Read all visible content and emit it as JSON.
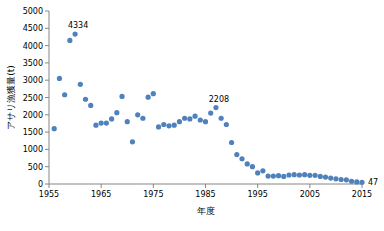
{
  "chart_data": {
    "type": "scatter",
    "x_label": "年度",
    "y_label": "アサリ漁獲量(t)",
    "x": [
      1956,
      1957,
      1958,
      1959,
      1960,
      1961,
      1962,
      1963,
      1964,
      1965,
      1966,
      1967,
      1968,
      1969,
      1970,
      1971,
      1972,
      1973,
      1974,
      1975,
      1976,
      1977,
      1978,
      1979,
      1980,
      1981,
      1982,
      1983,
      1984,
      1985,
      1986,
      1987,
      1988,
      1989,
      1990,
      1991,
      1992,
      1993,
      1994,
      1995,
      1996,
      1997,
      1998,
      1999,
      2000,
      2001,
      2002,
      2003,
      2004,
      2005,
      2006,
      2007,
      2008,
      2009,
      2010,
      2011,
      2012,
      2013,
      2014,
      2015
    ],
    "values": [
      1600,
      3050,
      2580,
      4150,
      4334,
      2880,
      2450,
      2270,
      1700,
      1760,
      1760,
      1880,
      2060,
      2530,
      1800,
      1220,
      2000,
      1900,
      2510,
      2610,
      1650,
      1720,
      1680,
      1700,
      1800,
      1900,
      1880,
      1960,
      1850,
      1800,
      2050,
      2208,
      1900,
      1720,
      1200,
      850,
      730,
      580,
      500,
      320,
      380,
      230,
      230,
      240,
      220,
      260,
      270,
      260,
      270,
      250,
      250,
      220,
      200,
      170,
      150,
      130,
      120,
      80,
      60,
      47
    ],
    "color": "#4f81bd",
    "marker": "circle",
    "xlim": [
      1955,
      2015
    ],
    "xticks": [
      1955,
      1965,
      1975,
      1985,
      1995,
      2005,
      2015
    ],
    "ylim": [
      0,
      5000
    ],
    "yticks": [
      0,
      500,
      1000,
      1500,
      2000,
      2500,
      3000,
      3500,
      4000,
      4500,
      5000
    ],
    "grid": false,
    "annotations": [
      {
        "text": "4334",
        "x": 1960,
        "y": 4334
      },
      {
        "text": "2208",
        "x": 1987,
        "y": 2208
      },
      {
        "text": "47",
        "x": 2015,
        "y": 47
      }
    ]
  }
}
